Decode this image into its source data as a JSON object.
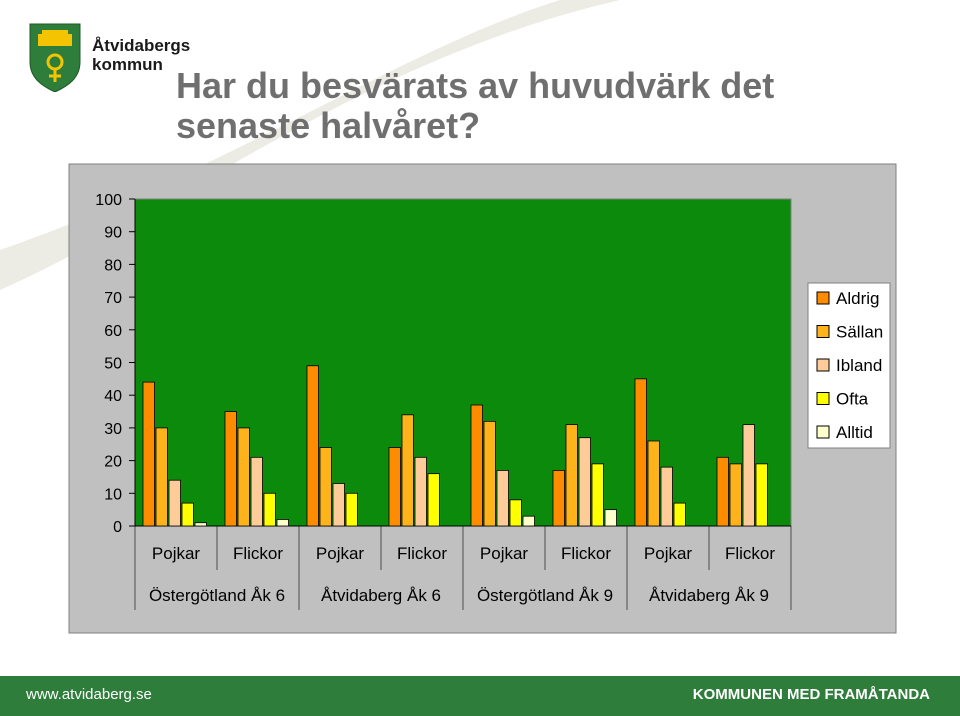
{
  "brand": {
    "name_line1": "Åtvidabergs",
    "name_line2": "kommun"
  },
  "slide": {
    "title": "Har du besvärats av huvudvärk det senaste halvåret?"
  },
  "footer": {
    "url": "www.atvidaberg.se",
    "slogan": "KOMMUNEN MED FRAMÅTANDA"
  },
  "colors": {
    "title_text": "#6f6f6f",
    "plot_background": "#0b8a0b",
    "chart_panel": "#c0c0c0",
    "footer_bar": "#2e7d3a",
    "swoosh": "#ecebe4"
  },
  "chart_data": {
    "type": "bar",
    "ylim": [
      0,
      100
    ],
    "y_ticks": [
      "0",
      "10",
      "20",
      "30",
      "40",
      "50",
      "60",
      "70",
      "80",
      "90",
      "100"
    ],
    "grid": false,
    "legend_position": "right",
    "categories": [
      "Pojkar",
      "Flickor",
      "Pojkar",
      "Flickor",
      "Pojkar",
      "Flickor",
      "Pojkar",
      "Flickor"
    ],
    "groups": [
      "Östergötland Åk 6",
      "Åtvidaberg Åk 6",
      "Östergötland Åk 9",
      "Åtvidaberg Åk 9"
    ],
    "series": [
      {
        "name": "Aldrig",
        "color": "#ff8c00",
        "values": [
          44,
          35,
          49,
          24,
          37,
          17,
          45,
          21
        ]
      },
      {
        "name": "Sällan",
        "color": "#ffb31a",
        "values": [
          30,
          30,
          24,
          34,
          32,
          31,
          26,
          19
        ]
      },
      {
        "name": "Ibland",
        "color": "#ffcc99",
        "values": [
          14,
          21,
          13,
          21,
          17,
          27,
          18,
          31
        ]
      },
      {
        "name": "Ofta",
        "color": "#ffff00",
        "values": [
          7,
          10,
          10,
          16,
          8,
          19,
          7,
          19
        ]
      },
      {
        "name": "Alltid",
        "color": "#ffffcc",
        "values": [
          1,
          2,
          0,
          0,
          3,
          5,
          0,
          0
        ]
      }
    ]
  }
}
